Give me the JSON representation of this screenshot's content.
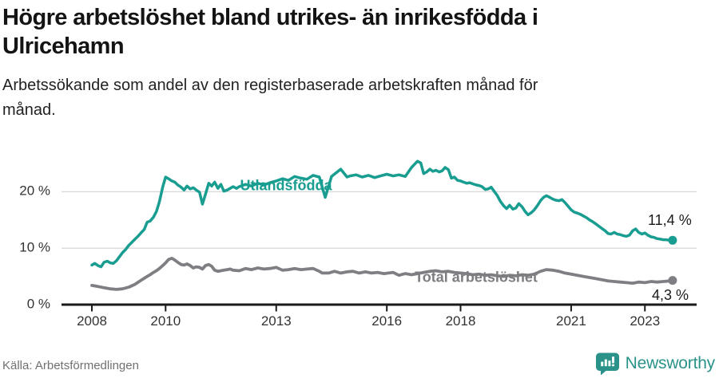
{
  "page": {
    "title_lines": [
      "Högre arbetslöshet bland utrikes- än inrikesfödda i",
      "Ulricehamn"
    ],
    "subtitle_lines": [
      "Arbetssökande som andel av den registerbaserade arbetskraften månad för",
      "månad."
    ],
    "source": "Källa: Arbetsförmedlingen",
    "brand": {
      "name": "Newsworthy",
      "color": "#2a9288",
      "icon": "bar-chart-speech-bubble"
    }
  },
  "chart_data": {
    "type": "line",
    "title": "Högre arbetslöshet bland utrikes- än inrikesfödda i Ulricehamn",
    "subtitle": "Arbetssökande som andel av den registerbaserade arbetskraften månad för månad.",
    "unit": "%",
    "grid": "horizontal",
    "legend_position": "inline-labels",
    "x_axis": {
      "range": [
        2007.9,
        2024.4
      ],
      "ticks": [
        {
          "v": 2008,
          "label": "2008"
        },
        {
          "v": 2010,
          "label": "2010"
        },
        {
          "v": 2013,
          "label": "2013"
        },
        {
          "v": 2016,
          "label": "2016"
        },
        {
          "v": 2018,
          "label": "2018"
        },
        {
          "v": 2021,
          "label": "2021"
        },
        {
          "v": 2023,
          "label": "2023"
        }
      ]
    },
    "y_axis": {
      "range": [
        0,
        26.5
      ],
      "ticks": [
        {
          "v": 0,
          "label": "0 %"
        },
        {
          "v": 10,
          "label": "10 %"
        },
        {
          "v": 20,
          "label": "20 %"
        }
      ]
    },
    "series": [
      {
        "id": "utlandsfodda",
        "name": "Utlandsfödda",
        "color": "#199d90",
        "width": 3.5,
        "end_label": "11,4 %",
        "last_value": 11.4,
        "points": [
          [
            2008.0,
            7.0
          ],
          [
            2008.08,
            7.3
          ],
          [
            2008.17,
            6.9
          ],
          [
            2008.25,
            6.7
          ],
          [
            2008.33,
            7.5
          ],
          [
            2008.42,
            7.7
          ],
          [
            2008.5,
            7.4
          ],
          [
            2008.58,
            7.3
          ],
          [
            2008.67,
            7.8
          ],
          [
            2008.75,
            8.5
          ],
          [
            2008.83,
            9.2
          ],
          [
            2008.92,
            9.8
          ],
          [
            2009.0,
            10.5
          ],
          [
            2009.08,
            11.0
          ],
          [
            2009.17,
            11.6
          ],
          [
            2009.25,
            12.1
          ],
          [
            2009.33,
            12.7
          ],
          [
            2009.42,
            13.3
          ],
          [
            2009.5,
            14.6
          ],
          [
            2009.58,
            14.8
          ],
          [
            2009.67,
            15.5
          ],
          [
            2009.75,
            16.5
          ],
          [
            2009.83,
            18.2
          ],
          [
            2009.92,
            20.8
          ],
          [
            2010.0,
            22.6
          ],
          [
            2010.08,
            22.3
          ],
          [
            2010.17,
            21.9
          ],
          [
            2010.25,
            21.7
          ],
          [
            2010.33,
            21.2
          ],
          [
            2010.42,
            20.8
          ],
          [
            2010.5,
            20.3
          ],
          [
            2010.58,
            21.0
          ],
          [
            2010.67,
            20.5
          ],
          [
            2010.75,
            20.7
          ],
          [
            2010.83,
            20.3
          ],
          [
            2010.92,
            19.9
          ],
          [
            2011.0,
            17.8
          ],
          [
            2011.08,
            19.5
          ],
          [
            2011.17,
            21.5
          ],
          [
            2011.25,
            21.0
          ],
          [
            2011.33,
            21.7
          ],
          [
            2011.42,
            20.6
          ],
          [
            2011.5,
            21.3
          ],
          [
            2011.58,
            20.1
          ],
          [
            2011.67,
            20.3
          ],
          [
            2011.75,
            20.6
          ],
          [
            2011.83,
            20.9
          ],
          [
            2011.92,
            20.6
          ],
          [
            2012.0,
            20.9
          ],
          [
            2012.17,
            21.3
          ],
          [
            2012.33,
            21.0
          ],
          [
            2012.5,
            21.5
          ],
          [
            2012.67,
            21.2
          ],
          [
            2012.83,
            21.6
          ],
          [
            2013.0,
            21.9
          ],
          [
            2013.17,
            22.3
          ],
          [
            2013.33,
            22.0
          ],
          [
            2013.5,
            22.7
          ],
          [
            2013.67,
            22.4
          ],
          [
            2013.83,
            22.2
          ],
          [
            2014.0,
            22.9
          ],
          [
            2014.17,
            22.6
          ],
          [
            2014.33,
            19.0
          ],
          [
            2014.5,
            22.7
          ],
          [
            2014.75,
            24.0
          ],
          [
            2014.92,
            22.6
          ],
          [
            2015.0,
            22.8
          ],
          [
            2015.17,
            23.0
          ],
          [
            2015.33,
            22.6
          ],
          [
            2015.5,
            22.9
          ],
          [
            2015.67,
            22.5
          ],
          [
            2015.83,
            22.8
          ],
          [
            2016.0,
            23.1
          ],
          [
            2016.17,
            22.8
          ],
          [
            2016.33,
            23.0
          ],
          [
            2016.5,
            22.7
          ],
          [
            2016.67,
            24.3
          ],
          [
            2016.83,
            25.4
          ],
          [
            2016.92,
            25.1
          ],
          [
            2017.0,
            23.2
          ],
          [
            2017.08,
            23.5
          ],
          [
            2017.17,
            24.0
          ],
          [
            2017.25,
            23.6
          ],
          [
            2017.33,
            23.8
          ],
          [
            2017.42,
            23.5
          ],
          [
            2017.5,
            23.7
          ],
          [
            2017.58,
            24.3
          ],
          [
            2017.67,
            23.9
          ],
          [
            2017.75,
            22.4
          ],
          [
            2017.83,
            22.6
          ],
          [
            2017.92,
            22.0
          ],
          [
            2018.0,
            21.9
          ],
          [
            2018.08,
            21.7
          ],
          [
            2018.17,
            21.5
          ],
          [
            2018.25,
            21.6
          ],
          [
            2018.33,
            21.4
          ],
          [
            2018.42,
            21.2
          ],
          [
            2018.5,
            21.1
          ],
          [
            2018.58,
            20.9
          ],
          [
            2018.67,
            20.4
          ],
          [
            2018.75,
            20.5
          ],
          [
            2018.83,
            20.8
          ],
          [
            2018.92,
            20.0
          ],
          [
            2019.0,
            19.3
          ],
          [
            2019.08,
            18.3
          ],
          [
            2019.17,
            17.5
          ],
          [
            2019.25,
            17.0
          ],
          [
            2019.33,
            17.6
          ],
          [
            2019.42,
            16.9
          ],
          [
            2019.5,
            17.1
          ],
          [
            2019.58,
            17.9
          ],
          [
            2019.67,
            17.3
          ],
          [
            2019.75,
            16.5
          ],
          [
            2019.83,
            15.9
          ],
          [
            2019.92,
            16.3
          ],
          [
            2020.0,
            16.8
          ],
          [
            2020.08,
            17.5
          ],
          [
            2020.17,
            18.4
          ],
          [
            2020.25,
            19.0
          ],
          [
            2020.33,
            19.3
          ],
          [
            2020.42,
            19.0
          ],
          [
            2020.5,
            18.7
          ],
          [
            2020.58,
            18.5
          ],
          [
            2020.67,
            18.4
          ],
          [
            2020.75,
            18.6
          ],
          [
            2020.83,
            18.1
          ],
          [
            2020.92,
            17.4
          ],
          [
            2021.0,
            16.8
          ],
          [
            2021.08,
            16.4
          ],
          [
            2021.17,
            16.2
          ],
          [
            2021.25,
            16.0
          ],
          [
            2021.33,
            15.7
          ],
          [
            2021.42,
            15.4
          ],
          [
            2021.5,
            15.0
          ],
          [
            2021.58,
            14.7
          ],
          [
            2021.67,
            14.3
          ],
          [
            2021.75,
            13.9
          ],
          [
            2021.83,
            13.5
          ],
          [
            2021.92,
            13.1
          ],
          [
            2022.0,
            12.6
          ],
          [
            2022.08,
            12.5
          ],
          [
            2022.17,
            12.8
          ],
          [
            2022.25,
            12.5
          ],
          [
            2022.33,
            12.4
          ],
          [
            2022.42,
            12.2
          ],
          [
            2022.5,
            12.1
          ],
          [
            2022.58,
            12.3
          ],
          [
            2022.67,
            13.1
          ],
          [
            2022.75,
            13.4
          ],
          [
            2022.83,
            12.8
          ],
          [
            2022.92,
            12.5
          ],
          [
            2023.0,
            12.7
          ],
          [
            2023.08,
            12.3
          ],
          [
            2023.17,
            12.0
          ],
          [
            2023.25,
            11.9
          ],
          [
            2023.33,
            11.7
          ],
          [
            2023.42,
            11.6
          ],
          [
            2023.5,
            11.5
          ],
          [
            2023.58,
            11.5
          ],
          [
            2023.67,
            11.4
          ],
          [
            2023.75,
            11.4
          ]
        ]
      },
      {
        "id": "total",
        "name": "Total arbetslöshet",
        "color": "#7e7e83",
        "width": 3.8,
        "end_label": "4,3 %",
        "last_value": 4.3,
        "points": [
          [
            2008.0,
            3.4
          ],
          [
            2008.17,
            3.2
          ],
          [
            2008.33,
            3.0
          ],
          [
            2008.5,
            2.8
          ],
          [
            2008.67,
            2.7
          ],
          [
            2008.83,
            2.8
          ],
          [
            2009.0,
            3.1
          ],
          [
            2009.17,
            3.6
          ],
          [
            2009.33,
            4.3
          ],
          [
            2009.5,
            5.0
          ],
          [
            2009.58,
            5.3
          ],
          [
            2009.67,
            5.7
          ],
          [
            2009.75,
            6.0
          ],
          [
            2009.83,
            6.4
          ],
          [
            2009.92,
            6.9
          ],
          [
            2010.0,
            7.4
          ],
          [
            2010.08,
            8.0
          ],
          [
            2010.17,
            8.2
          ],
          [
            2010.25,
            7.9
          ],
          [
            2010.33,
            7.5
          ],
          [
            2010.42,
            7.1
          ],
          [
            2010.5,
            7.0
          ],
          [
            2010.58,
            7.2
          ],
          [
            2010.67,
            6.9
          ],
          [
            2010.75,
            6.5
          ],
          [
            2010.83,
            6.7
          ],
          [
            2010.92,
            6.6
          ],
          [
            2011.0,
            6.3
          ],
          [
            2011.08,
            6.9
          ],
          [
            2011.17,
            7.1
          ],
          [
            2011.25,
            6.8
          ],
          [
            2011.33,
            6.1
          ],
          [
            2011.42,
            5.9
          ],
          [
            2011.5,
            6.0
          ],
          [
            2011.58,
            6.1
          ],
          [
            2011.67,
            6.2
          ],
          [
            2011.75,
            6.3
          ],
          [
            2011.83,
            6.1
          ],
          [
            2012.0,
            6.0
          ],
          [
            2012.17,
            6.4
          ],
          [
            2012.33,
            6.2
          ],
          [
            2012.5,
            6.5
          ],
          [
            2012.67,
            6.3
          ],
          [
            2012.83,
            6.4
          ],
          [
            2013.0,
            6.6
          ],
          [
            2013.17,
            6.1
          ],
          [
            2013.33,
            6.2
          ],
          [
            2013.5,
            6.4
          ],
          [
            2013.67,
            6.2
          ],
          [
            2013.83,
            6.3
          ],
          [
            2014.0,
            6.4
          ],
          [
            2014.17,
            5.9
          ],
          [
            2014.25,
            5.6
          ],
          [
            2014.42,
            5.6
          ],
          [
            2014.58,
            5.9
          ],
          [
            2014.75,
            5.6
          ],
          [
            2014.92,
            5.8
          ],
          [
            2015.08,
            5.9
          ],
          [
            2015.25,
            5.6
          ],
          [
            2015.42,
            5.8
          ],
          [
            2015.58,
            5.6
          ],
          [
            2015.75,
            5.7
          ],
          [
            2015.92,
            5.5
          ],
          [
            2016.17,
            5.7
          ],
          [
            2016.33,
            5.2
          ],
          [
            2016.5,
            5.5
          ],
          [
            2016.67,
            5.3
          ],
          [
            2016.83,
            5.5
          ],
          [
            2017.0,
            5.7
          ],
          [
            2017.17,
            5.9
          ],
          [
            2017.33,
            6.0
          ],
          [
            2017.5,
            5.8
          ],
          [
            2017.67,
            5.9
          ],
          [
            2017.83,
            5.7
          ],
          [
            2018.0,
            5.6
          ],
          [
            2018.17,
            5.5
          ],
          [
            2018.33,
            5.3
          ],
          [
            2018.5,
            5.4
          ],
          [
            2018.67,
            5.2
          ],
          [
            2018.83,
            5.3
          ],
          [
            2019.0,
            5.1
          ],
          [
            2019.17,
            5.0
          ],
          [
            2019.33,
            5.2
          ],
          [
            2019.5,
            5.1
          ],
          [
            2019.67,
            5.3
          ],
          [
            2019.83,
            5.2
          ],
          [
            2020.0,
            5.4
          ],
          [
            2020.17,
            5.9
          ],
          [
            2020.33,
            6.2
          ],
          [
            2020.5,
            6.1
          ],
          [
            2020.67,
            5.9
          ],
          [
            2020.83,
            5.6
          ],
          [
            2021.0,
            5.4
          ],
          [
            2021.17,
            5.2
          ],
          [
            2021.33,
            5.0
          ],
          [
            2021.5,
            4.8
          ],
          [
            2021.67,
            4.6
          ],
          [
            2021.83,
            4.4
          ],
          [
            2022.0,
            4.2
          ],
          [
            2022.17,
            4.1
          ],
          [
            2022.33,
            4.0
          ],
          [
            2022.5,
            3.9
          ],
          [
            2022.67,
            3.8
          ],
          [
            2022.83,
            4.0
          ],
          [
            2023.0,
            3.9
          ],
          [
            2023.17,
            4.1
          ],
          [
            2023.33,
            4.0
          ],
          [
            2023.5,
            4.1
          ],
          [
            2023.67,
            4.2
          ],
          [
            2023.75,
            4.3
          ]
        ]
      }
    ]
  }
}
